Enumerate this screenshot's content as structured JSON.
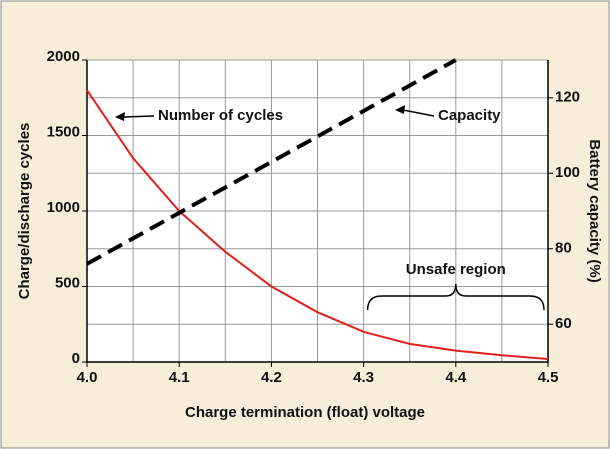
{
  "chart_data": {
    "type": "line",
    "xlabel": "Charge termination (float) voltage",
    "ylabel": "Charge/discharge cycles",
    "y2label": "Battery capacity (%)",
    "xlim": [
      4.0,
      4.5
    ],
    "xticks": [
      {
        "value": 4,
        "label": "4.0"
      },
      4.1,
      4.2,
      4.3,
      4.4,
      4.5
    ],
    "ylim": [
      0,
      2000
    ],
    "yticks": [
      0,
      500,
      1000,
      1500,
      2000
    ],
    "y2lim": [
      50,
      130
    ],
    "y2ticks": [
      60,
      80,
      100,
      120
    ],
    "grid": true,
    "series": [
      {
        "name": "Number of cycles",
        "color": "#e0201b",
        "style": "solid",
        "x": [
          4.0,
          4.05,
          4.1,
          4.15,
          4.2,
          4.25,
          4.3,
          4.35,
          4.4,
          4.45,
          4.5
        ],
        "values": [
          1800,
          1350,
          1000,
          730,
          500,
          330,
          200,
          120,
          75,
          45,
          20
        ]
      },
      {
        "name": "Capacity",
        "color": "#000000",
        "style": "dashed",
        "axis": "y2",
        "x": [
          4.0,
          4.1,
          4.2,
          4.3,
          4.4
        ],
        "values": [
          76,
          89.5,
          103,
          116.5,
          130
        ]
      }
    ],
    "annotations": [
      "Unsafe region"
    ]
  }
}
